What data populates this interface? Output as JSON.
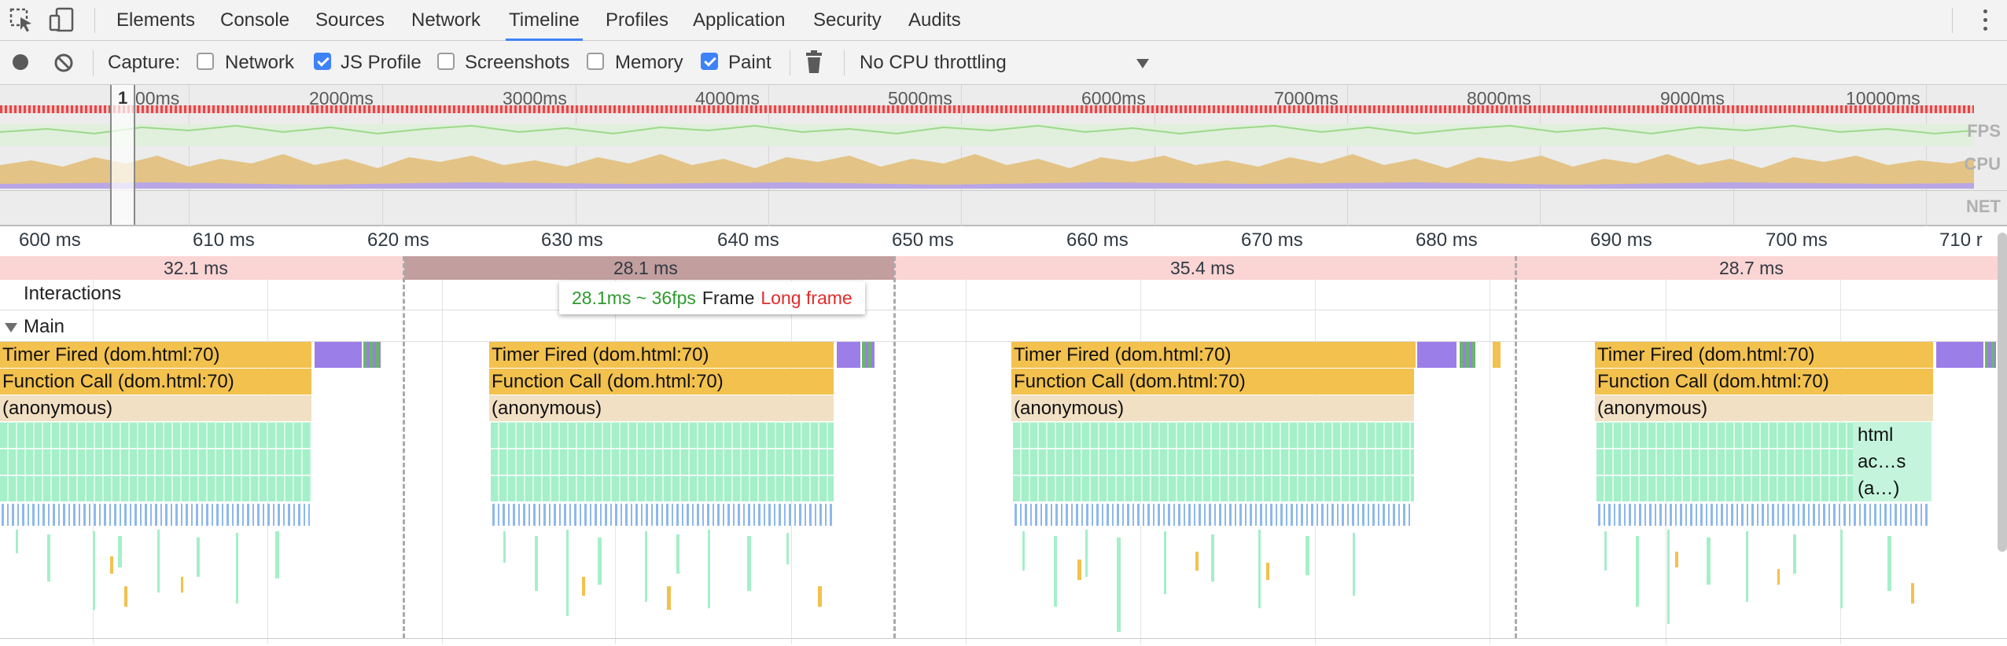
{
  "tabs": [
    {
      "label": "Elements",
      "selected": false
    },
    {
      "label": "Console",
      "selected": false
    },
    {
      "label": "Sources",
      "selected": false
    },
    {
      "label": "Network",
      "selected": false
    },
    {
      "label": "Timeline",
      "selected": true
    },
    {
      "label": "Profiles",
      "selected": false
    },
    {
      "label": "Application",
      "selected": false
    },
    {
      "label": "Security",
      "selected": false
    },
    {
      "label": "Audits",
      "selected": false
    }
  ],
  "toolbar": {
    "capture_label": "Capture:",
    "checkboxes": [
      {
        "label": "Network",
        "checked": false
      },
      {
        "label": "JS Profile",
        "checked": true
      },
      {
        "label": "Screenshots",
        "checked": false
      },
      {
        "label": "Memory",
        "checked": false
      },
      {
        "label": "Paint",
        "checked": true
      }
    ],
    "throttling": "No CPU throttling"
  },
  "overview": {
    "selection_label": "1",
    "ticks": [
      "00ms",
      "2000ms",
      "3000ms",
      "4000ms",
      "5000ms",
      "6000ms",
      "7000ms",
      "8000ms",
      "9000ms",
      "10000ms"
    ],
    "tracks": [
      "FPS",
      "CPU",
      "NET"
    ]
  },
  "detail": {
    "ticks": [
      "600 ms",
      "610 ms",
      "620 ms",
      "630 ms",
      "640 ms",
      "650 ms",
      "660 ms",
      "670 ms",
      "680 ms",
      "690 ms",
      "700 ms",
      "710 r"
    ],
    "frames": [
      "32.1 ms",
      "28.1 ms",
      "35.4 ms",
      "28.7 ms"
    ],
    "interactions_label": "Interactions",
    "main_label": "Main"
  },
  "tooltip": {
    "fps": "28.1ms ~ 36fps",
    "frame": "Frame",
    "long": "Long frame"
  },
  "flame": {
    "timer": "Timer Fired (dom.html:70)",
    "func": "Function Call (dom.html:70)",
    "anon": "(anonymous)",
    "extra": [
      "html",
      "ac…s",
      "(a…)"
    ]
  },
  "colors": {
    "accent": "#3e82f7",
    "frame_bar": "#fbd4d4",
    "frame_selected": "#c29e9e",
    "timer_event": "#f2c14e",
    "js_event": "#a5efc9",
    "paint_event": "#9b7ee8",
    "fps_ok": "#2e9a2e",
    "long_frame": "#e22b2b"
  },
  "icons": [
    "inspect-icon",
    "device-icon",
    "record-icon",
    "clear-icon",
    "trash-icon",
    "dropdown-arrow-icon",
    "more-icon"
  ]
}
